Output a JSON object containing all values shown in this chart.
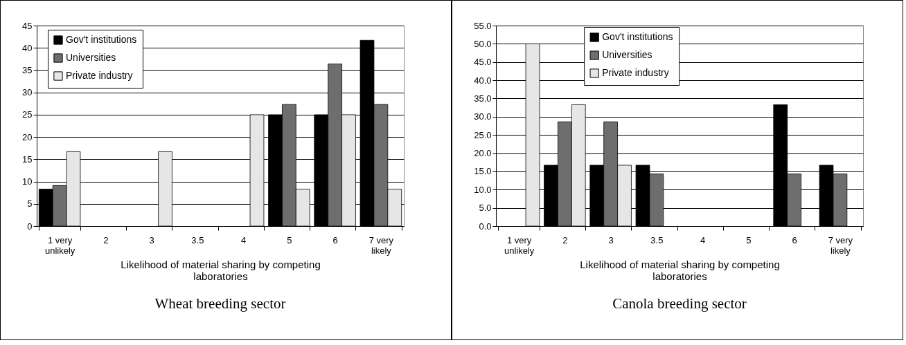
{
  "chart_data": [
    {
      "type": "bar",
      "title": "Wheat breeding sector",
      "xlabel": "Likelihood of material sharing by competing laboratories",
      "categories": [
        "1 very unlikely",
        "2",
        "3",
        "3.5",
        "4",
        "5",
        "6",
        "7 very likely"
      ],
      "series": [
        {
          "name": "Gov't institutions",
          "color": "#000000",
          "values": [
            8.3,
            null,
            null,
            null,
            null,
            25,
            25,
            41.7
          ]
        },
        {
          "name": "Universities",
          "color": "#6e6e6e",
          "values": [
            9.1,
            null,
            null,
            null,
            null,
            27.3,
            36.4,
            27.3
          ]
        },
        {
          "name": "Private industry",
          "color": "#e6e6e6",
          "values": [
            16.7,
            null,
            16.7,
            null,
            25,
            8.3,
            25,
            8.3
          ]
        }
      ],
      "ylim": [
        0,
        45
      ],
      "yticks": [
        0,
        5,
        10,
        15,
        20,
        25,
        30,
        35,
        40,
        45
      ],
      "grid": "y",
      "legend": "top left"
    },
    {
      "type": "bar",
      "title": "Canola breeding sector",
      "xlabel": "Likelihood of material sharing by competing laboratories",
      "categories": [
        "1 very unlikely",
        "2",
        "3",
        "3.5",
        "4",
        "5",
        "6",
        "7 very likely"
      ],
      "series": [
        {
          "name": "Gov't institutions",
          "color": "#000000",
          "values": [
            null,
            16.7,
            16.7,
            16.7,
            null,
            null,
            33.3,
            16.7
          ]
        },
        {
          "name": "Universities",
          "color": "#6e6e6e",
          "values": [
            null,
            28.6,
            28.6,
            14.3,
            null,
            null,
            14.3,
            14.3
          ]
        },
        {
          "name": "Private industry",
          "color": "#e6e6e6",
          "values": [
            50,
            33.3,
            16.7,
            null,
            null,
            null,
            null,
            null
          ]
        }
      ],
      "ylim": [
        0,
        55
      ],
      "yticks": [
        {
          "value": 0,
          "label": "0.0"
        },
        {
          "value": 5,
          "label": "5.0"
        },
        {
          "value": 10,
          "label": "10.0"
        },
        {
          "value": 15,
          "label": "15.0"
        },
        {
          "value": 20,
          "label": "20.0"
        },
        {
          "value": 25,
          "label": "25.0"
        },
        {
          "value": 30,
          "label": "30.0"
        },
        {
          "value": 35,
          "label": "35.0"
        },
        {
          "value": 40,
          "label": "40.0"
        },
        {
          "value": 45,
          "label": "45.0"
        },
        {
          "value": 50,
          "label": "50.0"
        },
        {
          "value": 55,
          "label": "55.0"
        }
      ],
      "grid": "y",
      "legend": "top"
    }
  ]
}
